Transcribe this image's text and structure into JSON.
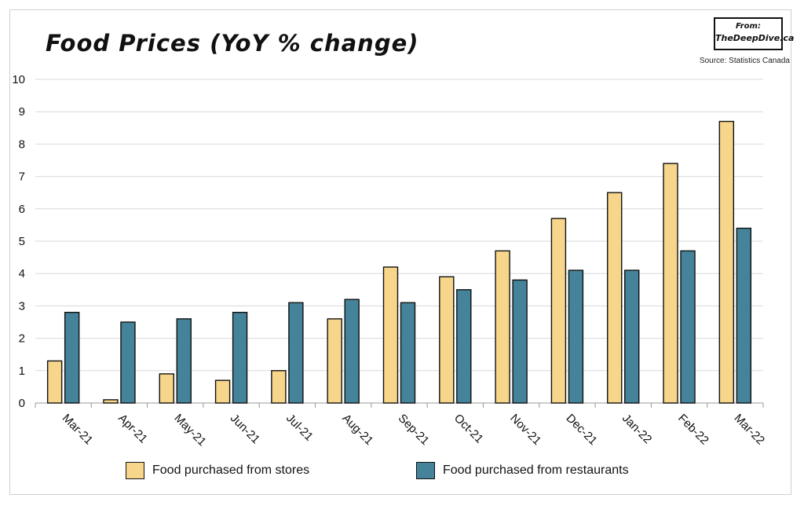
{
  "title": "Food Prices (YoY % change)",
  "logo": {
    "line1": "From:",
    "line2": "TheDeepDive.ca"
  },
  "source": "Source: Statistics Canada",
  "chart_data": {
    "type": "bar",
    "categories": [
      "Mar-21",
      "Apr-21",
      "May-21",
      "Jun-21",
      "Jul-21",
      "Aug-21",
      "Sep-21",
      "Oct-21",
      "Nov-21",
      "Dec-21",
      "Jan-22",
      "Feb-22",
      "Mar-22"
    ],
    "series": [
      {
        "name": "Food purchased from stores",
        "color": "#f7d68b",
        "values": [
          1.3,
          0.1,
          0.9,
          0.7,
          1.0,
          2.6,
          4.2,
          3.9,
          4.7,
          5.7,
          6.5,
          7.4,
          8.7
        ]
      },
      {
        "name": "Food purchased from restaurants",
        "color": "#44839a",
        "values": [
          2.8,
          2.5,
          2.6,
          2.8,
          3.1,
          3.2,
          3.1,
          3.5,
          3.8,
          4.1,
          4.1,
          4.7,
          5.4
        ]
      }
    ],
    "ylim": [
      0,
      10
    ],
    "yticks": [
      0,
      1,
      2,
      3,
      4,
      5,
      6,
      7,
      8,
      9,
      10
    ],
    "grid": true,
    "legend": "bottom"
  }
}
